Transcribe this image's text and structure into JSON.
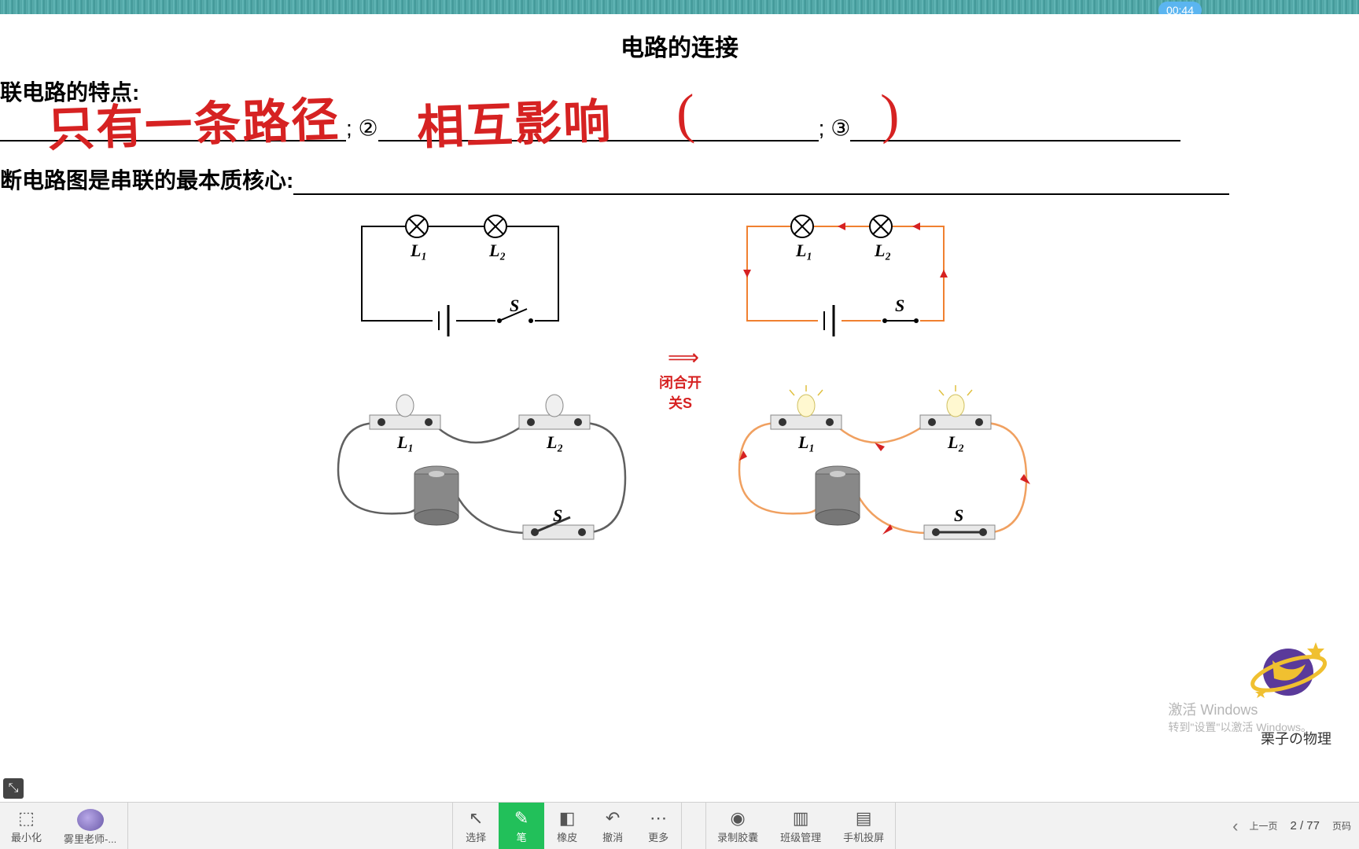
{
  "timer": "00:44",
  "doc": {
    "title": "电路的连接",
    "line1_prefix": "联电路的特点:",
    "blank_sep1": "; ②",
    "blank_sep2": "; ③",
    "line2_prefix": "断电路图是串联的最本质核心:",
    "blank1_w": 440,
    "blank2_w": 560,
    "blank3_w": 420,
    "blank4_w": 1190
  },
  "hand": {
    "a": "只有一条路径",
    "b": "相互影响",
    "paren_l": "(",
    "paren_r": ")"
  },
  "diagram": {
    "L1": "L₁",
    "L2": "L₂",
    "S": "S",
    "arrow_caption": "闭合开关S",
    "colors": {
      "black": "#000000",
      "active": "#f08030",
      "red": "#d62222",
      "gray": "#808080",
      "lightgray": "#d8d8d8"
    }
  },
  "watermark": {
    "line1": "激活 Windows",
    "line2": "转到\"设置\"以激活 Windows。",
    "brand": "栗子の物理"
  },
  "toolbar": {
    "left": [
      {
        "name": "minimize",
        "label": "最小化",
        "icon": "▭"
      },
      {
        "name": "teacher",
        "label": "雾里老师-...",
        "icon": "avatar"
      }
    ],
    "center1": [
      {
        "name": "select",
        "label": "选择",
        "icon": "↖",
        "active": false
      },
      {
        "name": "pen",
        "label": "笔",
        "icon": "✎",
        "active": true
      },
      {
        "name": "eraser",
        "label": "橡皮",
        "icon": "◧",
        "active": false
      },
      {
        "name": "undo",
        "label": "撤消",
        "icon": "↶",
        "active": false
      },
      {
        "name": "more",
        "label": "更多",
        "icon": "⋯",
        "active": false
      }
    ],
    "center2": [
      {
        "name": "record",
        "label": "录制胶囊",
        "icon": "◉"
      },
      {
        "name": "class",
        "label": "班级管理",
        "icon": "▥"
      },
      {
        "name": "cast",
        "label": "手机投屏",
        "icon": "▤"
      }
    ],
    "right": {
      "prev": "上一页",
      "pagenum": "页码",
      "page": "2 / 77"
    }
  },
  "taskbar": {
    "chip1": "最小化",
    "chip2": "雾里老师-..."
  }
}
